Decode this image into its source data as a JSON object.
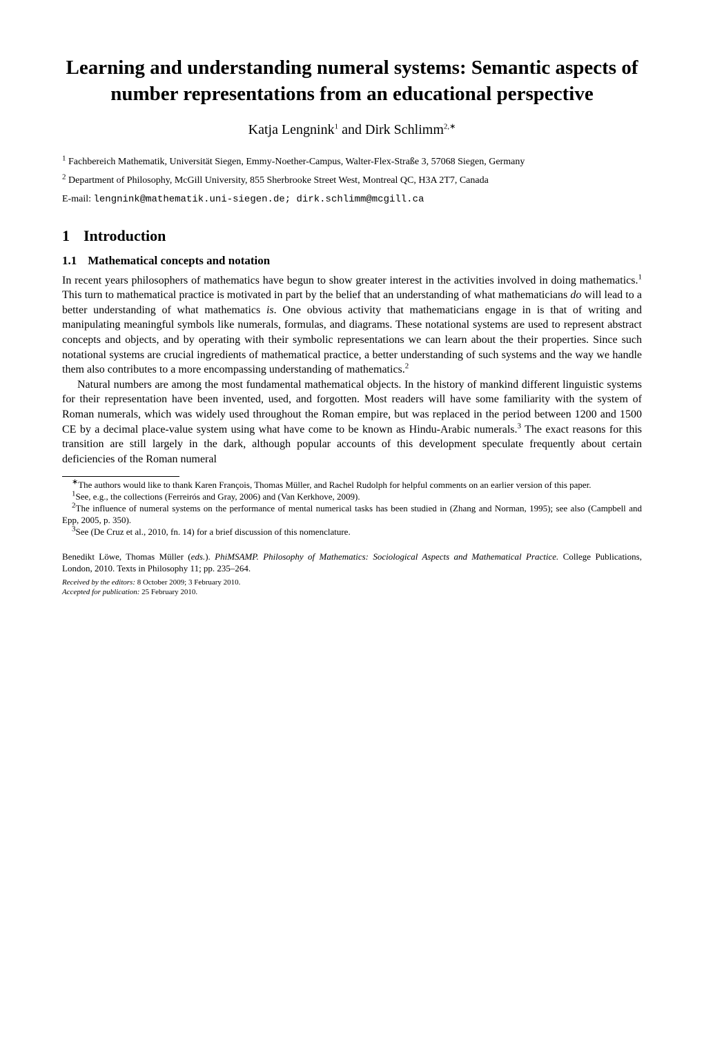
{
  "title": "Learning and understanding numeral systems: Semantic aspects of number representations from an educational perspective",
  "authors": {
    "a1": {
      "name": "Katja Lengnink",
      "supmark": "1"
    },
    "sep": " and ",
    "a2": {
      "name": "Dirk Schlimm",
      "supmark": "2,∗"
    }
  },
  "affil1": {
    "sup": "1",
    "text": " Fachbereich Mathematik, Universität Siegen, Emmy-Noether-Campus, Walter-Flex-Straße 3, 57068 Siegen, Germany"
  },
  "affil2": {
    "sup": "2",
    "text": " Department of Philosophy, McGill University, 855 Sherbrooke Street West, Montreal QC, H3A 2T7, Canada"
  },
  "email": {
    "label": "E-mail: ",
    "value": "lengnink@mathematik.uni-siegen.de; dirk.schlimm@mcgill.ca"
  },
  "sec1": {
    "num": "1",
    "title": "Introduction"
  },
  "sub11": {
    "num": "1.1",
    "title": "Mathematical concepts and notation"
  },
  "para1": {
    "t1": "In recent years philosophers of mathematics have begun to show greater interest in the activities involved in doing mathematics.",
    "fn1": "1",
    "t2": " This turn to mathematical practice is motivated in part by the belief that an understanding of what mathematicians ",
    "i1": "do",
    "t3": " will lead to a better understanding of what mathematics ",
    "i2": "is",
    "t4": ". One obvious activity that mathematicians engage in is that of writing and manipulating meaningful symbols like numerals, formulas, and diagrams. These notational systems are used to represent abstract concepts and objects, and by operating with their symbolic representations we can learn about the their properties. Since such notational systems are crucial ingredients of mathematical practice, a better understanding of such systems and the way we handle them also contributes to a more encompassing understanding of mathematics.",
    "fn2": "2"
  },
  "para2": {
    "t1": "Natural numbers are among the most fundamental mathematical objects. In the history of mankind different linguistic systems for their representation have been invented, used, and forgotten. Most readers will have some familiarity with the system of Roman numerals, which was widely used throughout the Roman empire, but was replaced in the period between 1200 and 1500 CE by a decimal place-value system using what have come to be known as Hindu-Arabic numerals.",
    "fn3": "3",
    "t2": " The exact reasons for this transition are still largely in the dark, although popular accounts of this development speculate frequently about certain deficiencies of the Roman numeral"
  },
  "fnstar": {
    "mark": "∗",
    "text": "The authors would like to thank Karen François, Thomas Müller, and Rachel Rudolph for helpful comments on an earlier version of this paper."
  },
  "fnote1": {
    "mark": "1",
    "text": "See, e.g., the collections (Ferreirós and Gray, 2006) and (Van Kerkhove, 2009)."
  },
  "fnote2": {
    "mark": "2",
    "text": "The influence of numeral systems on the performance of mental numerical tasks has been studied in (Zhang and Norman, 1995); see also (Campbell and Epp, 2005, p. 350)."
  },
  "fnote3": {
    "mark": "3",
    "text": "See (De Cruz et al., 2010, fn. 14) for a brief discussion of this nomenclature."
  },
  "refinfo": {
    "t1": "Benedikt Löwe, Thomas Müller (",
    "i1": "eds.",
    "t2": "). ",
    "i2": "PhiMSAMP. Philosophy of Mathematics: Sociological Aspects and Mathematical Practice.",
    "t3": " College Publications, London, 2010. Texts in Philosophy 11; pp. 235–264."
  },
  "received": {
    "l1": "Received by the editors:",
    "v1": " 8 October 2009; 3 February 2010.",
    "l2": "Accepted for publication:",
    "v2": " 25 February 2010."
  }
}
